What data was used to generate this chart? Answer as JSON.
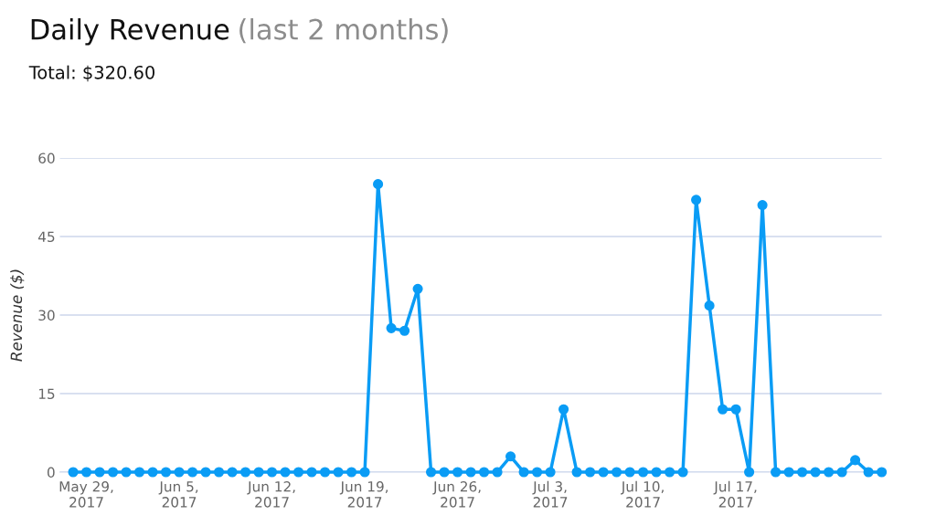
{
  "chart_data": {
    "type": "line",
    "title": "Daily Revenue",
    "subtitle": "Total: $320.60",
    "annotations": [
      "(last 2 months)"
    ],
    "ylabel": "Revenue ($)",
    "x": [
      "2017-05-28",
      "2017-05-29",
      "2017-05-30",
      "2017-05-31",
      "2017-06-01",
      "2017-06-02",
      "2017-06-03",
      "2017-06-04",
      "2017-06-05",
      "2017-06-06",
      "2017-06-07",
      "2017-06-08",
      "2017-06-09",
      "2017-06-10",
      "2017-06-11",
      "2017-06-12",
      "2017-06-13",
      "2017-06-14",
      "2017-06-15",
      "2017-06-16",
      "2017-06-17",
      "2017-06-18",
      "2017-06-19",
      "2017-06-20",
      "2017-06-21",
      "2017-06-22",
      "2017-06-23",
      "2017-06-24",
      "2017-06-25",
      "2017-06-26",
      "2017-06-27",
      "2017-06-28",
      "2017-06-29",
      "2017-06-30",
      "2017-07-01",
      "2017-07-02",
      "2017-07-03",
      "2017-07-04",
      "2017-07-05",
      "2017-07-06",
      "2017-07-07",
      "2017-07-08",
      "2017-07-09",
      "2017-07-10",
      "2017-07-11",
      "2017-07-12",
      "2017-07-13",
      "2017-07-14",
      "2017-07-15",
      "2017-07-16",
      "2017-07-17",
      "2017-07-18",
      "2017-07-19",
      "2017-07-20",
      "2017-07-21",
      "2017-07-22",
      "2017-07-23",
      "2017-07-24",
      "2017-07-25",
      "2017-07-26",
      "2017-07-27",
      "2017-07-28"
    ],
    "series": [
      {
        "color": "#0a9cf5",
        "values": [
          0,
          0,
          0,
          0,
          0,
          0,
          0,
          0,
          0,
          0,
          0,
          0,
          0,
          0,
          0,
          0,
          0,
          0,
          0,
          0,
          0,
          0,
          0,
          55,
          27.5,
          27,
          35,
          0,
          0,
          0,
          0,
          0,
          0,
          3,
          0,
          0,
          0,
          12,
          0,
          0,
          0,
          0,
          0,
          0,
          0,
          0,
          0,
          52,
          31.8,
          12,
          12,
          0,
          51,
          0,
          0,
          0,
          0,
          0,
          0,
          2.3,
          0,
          0
        ]
      }
    ],
    "xlim": [
      "2017-05-27",
      "2017-07-28"
    ],
    "xticks": [
      {
        "value": "2017-05-29",
        "label": "May 29,\n2017"
      },
      {
        "value": "2017-06-05",
        "label": "Jun 5,\n2017"
      },
      {
        "value": "2017-06-12",
        "label": "Jun 12,\n2017"
      },
      {
        "value": "2017-06-19",
        "label": "Jun 19,\n2017"
      },
      {
        "value": "2017-06-26",
        "label": "Jun 26,\n2017"
      },
      {
        "value": "2017-07-03",
        "label": "Jul 3,\n2017"
      },
      {
        "value": "2017-07-10",
        "label": "Jul 10,\n2017"
      },
      {
        "value": "2017-07-17",
        "label": "Jul 17,\n2017"
      }
    ],
    "ylim": [
      0,
      60
    ],
    "yticks": [
      0,
      15,
      30,
      45,
      60
    ],
    "grid": "y",
    "marker": "circle",
    "line_style": "solid"
  }
}
